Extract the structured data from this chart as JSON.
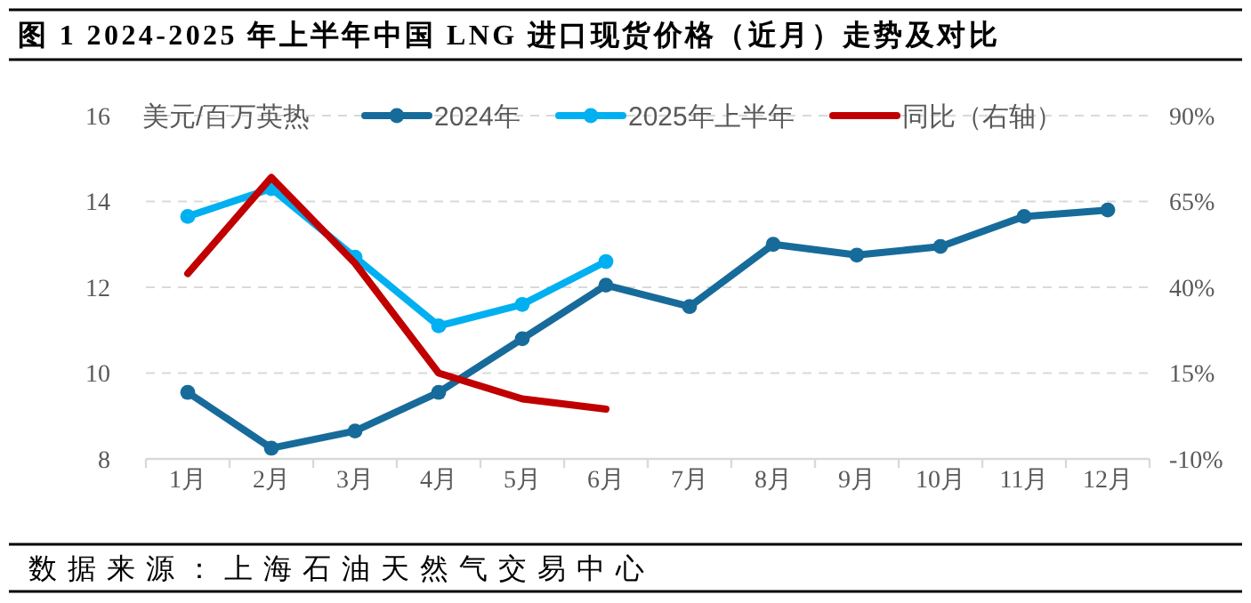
{
  "chart_data": {
    "type": "line",
    "title": "图 1 2024-2025 年上半年中国 LNG 进口现货价格（近月）走势及对比",
    "ylabel": "美元/百万英热",
    "annotations": [
      "数据来源：上海石油天然气交易中心"
    ],
    "categories": [
      "1月",
      "2月",
      "3月",
      "4月",
      "5月",
      "6月",
      "7月",
      "8月",
      "9月",
      "10月",
      "11月",
      "12月"
    ],
    "series": [
      {
        "name": "2024年",
        "color": "#176b9a",
        "marker": "circle",
        "values": [
          9.55,
          8.25,
          8.65,
          9.55,
          10.8,
          12.05,
          11.55,
          13.0,
          12.75,
          12.95,
          13.65,
          13.8
        ]
      },
      {
        "name": "2025年上半年",
        "color": "#00b0f0",
        "marker": "circle",
        "values": [
          13.65,
          14.3,
          12.7,
          11.1,
          11.6,
          12.6,
          null,
          null,
          null,
          null,
          null,
          null
        ]
      },
      {
        "name": "同比（右轴）",
        "color": "#c00000",
        "marker": "none",
        "axis": "y2",
        "values": [
          44,
          72,
          47,
          15,
          7.5,
          4.5,
          null,
          null,
          null,
          null,
          null,
          null
        ]
      }
    ],
    "ylim": [
      8,
      16
    ],
    "yticks": [
      8,
      10,
      12,
      14,
      16
    ],
    "y2lim": [
      -10,
      90
    ],
    "y2ticks": [
      {
        "value": -10,
        "label": "-10%"
      },
      {
        "value": 15,
        "label": "15%"
      },
      {
        "value": 40,
        "label": "40%"
      },
      {
        "value": 65,
        "label": "65%"
      },
      {
        "value": 90,
        "label": "90%"
      }
    ],
    "grid": "y",
    "legend": "top"
  }
}
